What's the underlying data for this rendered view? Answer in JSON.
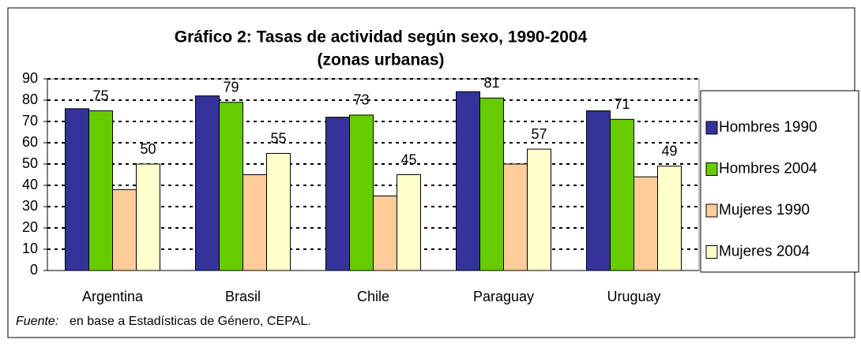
{
  "chart_data": {
    "type": "bar",
    "title": "Gráfico 2: Tasas de actividad según sexo, 1990-2004",
    "subtitle": "(zonas urbanas)",
    "categories": [
      "Argentina",
      "Brasil",
      "Chile",
      "Paraguay",
      "Uruguay"
    ],
    "series": [
      {
        "name": "Hombres 1990",
        "color": "#333399",
        "values": [
          76,
          82,
          72,
          84,
          75
        ]
      },
      {
        "name": "Hombres 2004",
        "color": "#66cc00",
        "values": [
          75,
          79,
          73,
          81,
          71
        ],
        "data_labels": true
      },
      {
        "name": "Mujeres 1990",
        "color": "#ffcc99",
        "values": [
          38,
          45,
          35,
          50,
          44
        ]
      },
      {
        "name": "Mujeres 2004",
        "color": "#ffffcc",
        "values": [
          50,
          55,
          45,
          57,
          49
        ],
        "data_labels": true
      }
    ],
    "ylim": [
      0,
      90
    ],
    "yticks": [
      0,
      10,
      20,
      30,
      40,
      50,
      60,
      70,
      80,
      90
    ],
    "grid": true,
    "legend": "right",
    "source_label": "Fuente:",
    "source_text": "en base a Estadísticas de Género, CEPAL."
  }
}
